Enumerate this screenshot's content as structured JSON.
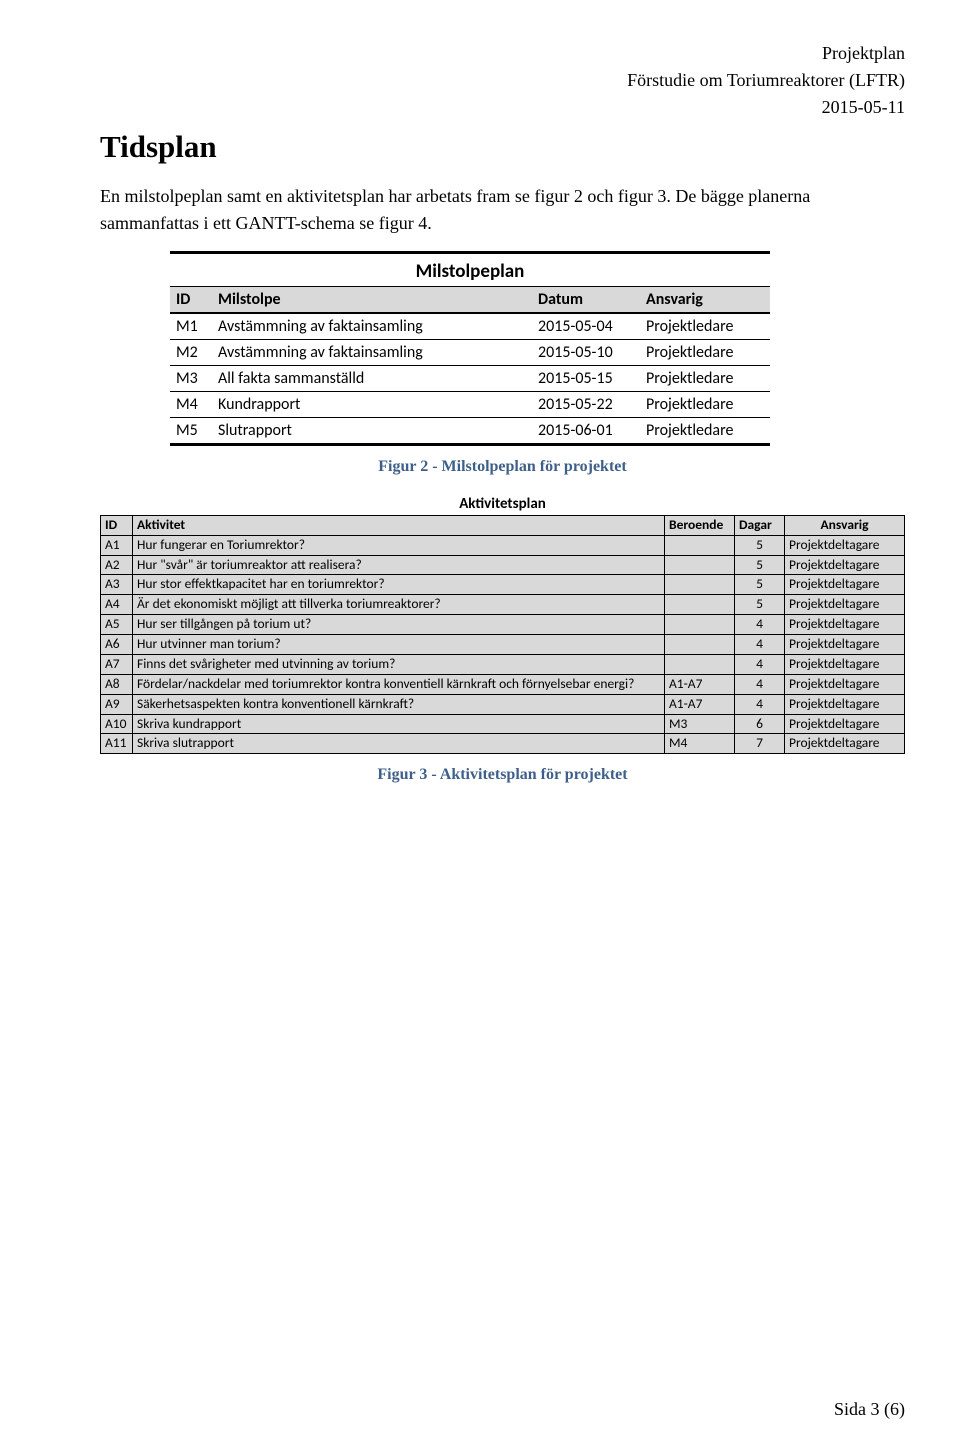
{
  "header": {
    "doc_type": "Projektplan",
    "title_line": "Förstudie om Toriumreaktorer (LFTR)",
    "date": "2015-05-11"
  },
  "heading": "Tidsplan",
  "intro": "En milstolpeplan samt en aktivitetsplan har arbetats fram se figur 2 och figur 3. De bägge planerna sammanfattas i ett GANTT-schema se figur 4.",
  "milstolpe": {
    "title": "Milstolpeplan",
    "columns": {
      "id": "ID",
      "mil": "Milstolpe",
      "dat": "Datum",
      "ans": "Ansvarig"
    },
    "rows": [
      {
        "id": "M1",
        "mil": "Avstämmning av faktainsamling",
        "dat": "2015-05-04",
        "ans": "Projektledare"
      },
      {
        "id": "M2",
        "mil": "Avstämmning av faktainsamling",
        "dat": "2015-05-10",
        "ans": "Projektledare"
      },
      {
        "id": "M3",
        "mil": "All fakta sammanställd",
        "dat": "2015-05-15",
        "ans": "Projektledare"
      },
      {
        "id": "M4",
        "mil": "Kundrapport",
        "dat": "2015-05-22",
        "ans": "Projektledare"
      },
      {
        "id": "M5",
        "mil": "Slutrapport",
        "dat": "2015-06-01",
        "ans": "Projektledare"
      }
    ],
    "caption": "Figur 2 - Milstolpeplan för projektet"
  },
  "aktivitet": {
    "title": "Aktivitetsplan",
    "columns": {
      "id": "ID",
      "akt": "Aktivitet",
      "ber": "Beroende",
      "dag": "Dagar",
      "ans": "Ansvarig"
    },
    "rows": [
      {
        "id": "A1",
        "akt": "Hur fungerar en Toriumrektor?",
        "ber": "",
        "dag": "5",
        "ans": "Projektdeltagare"
      },
      {
        "id": "A2",
        "akt": "Hur \"svår\" är toriumreaktor att realisera?",
        "ber": "",
        "dag": "5",
        "ans": "Projektdeltagare"
      },
      {
        "id": "A3",
        "akt": "Hur stor effektkapacitet har en toriumrektor?",
        "ber": "",
        "dag": "5",
        "ans": "Projektdeltagare"
      },
      {
        "id": "A4",
        "akt": "Är det ekonomiskt möjligt att tillverka toriumreaktorer?",
        "ber": "",
        "dag": "5",
        "ans": "Projektdeltagare"
      },
      {
        "id": "A5",
        "akt": "Hur ser tillgången på torium ut?",
        "ber": "",
        "dag": "4",
        "ans": "Projektdeltagare"
      },
      {
        "id": "A6",
        "akt": "Hur utvinner man torium?",
        "ber": "",
        "dag": "4",
        "ans": "Projektdeltagare"
      },
      {
        "id": "A7",
        "akt": "Finns det svårigheter med utvinning av torium?",
        "ber": "",
        "dag": "4",
        "ans": "Projektdeltagare"
      },
      {
        "id": "A8",
        "akt": "Fördelar/nackdelar med toriumrektor kontra konventiell kärnkraft och förnyelsebar energi?",
        "ber": "A1-A7",
        "dag": "4",
        "ans": "Projektdeltagare"
      },
      {
        "id": "A9",
        "akt": "Säkerhetsaspekten kontra konventionell kärnkraft?",
        "ber": "A1-A7",
        "dag": "4",
        "ans": "Projektdeltagare"
      },
      {
        "id": "A10",
        "akt": "Skriva kundrapport",
        "ber": "M3",
        "dag": "6",
        "ans": "Projektdeltagare"
      },
      {
        "id": "A11",
        "akt": "Skriva slutrapport",
        "ber": "M4",
        "dag": "7",
        "ans": "Projektdeltagare"
      }
    ],
    "caption": "Figur 3 - Aktivitetsplan för projektet"
  },
  "footer": "Sida 3 (6)"
}
